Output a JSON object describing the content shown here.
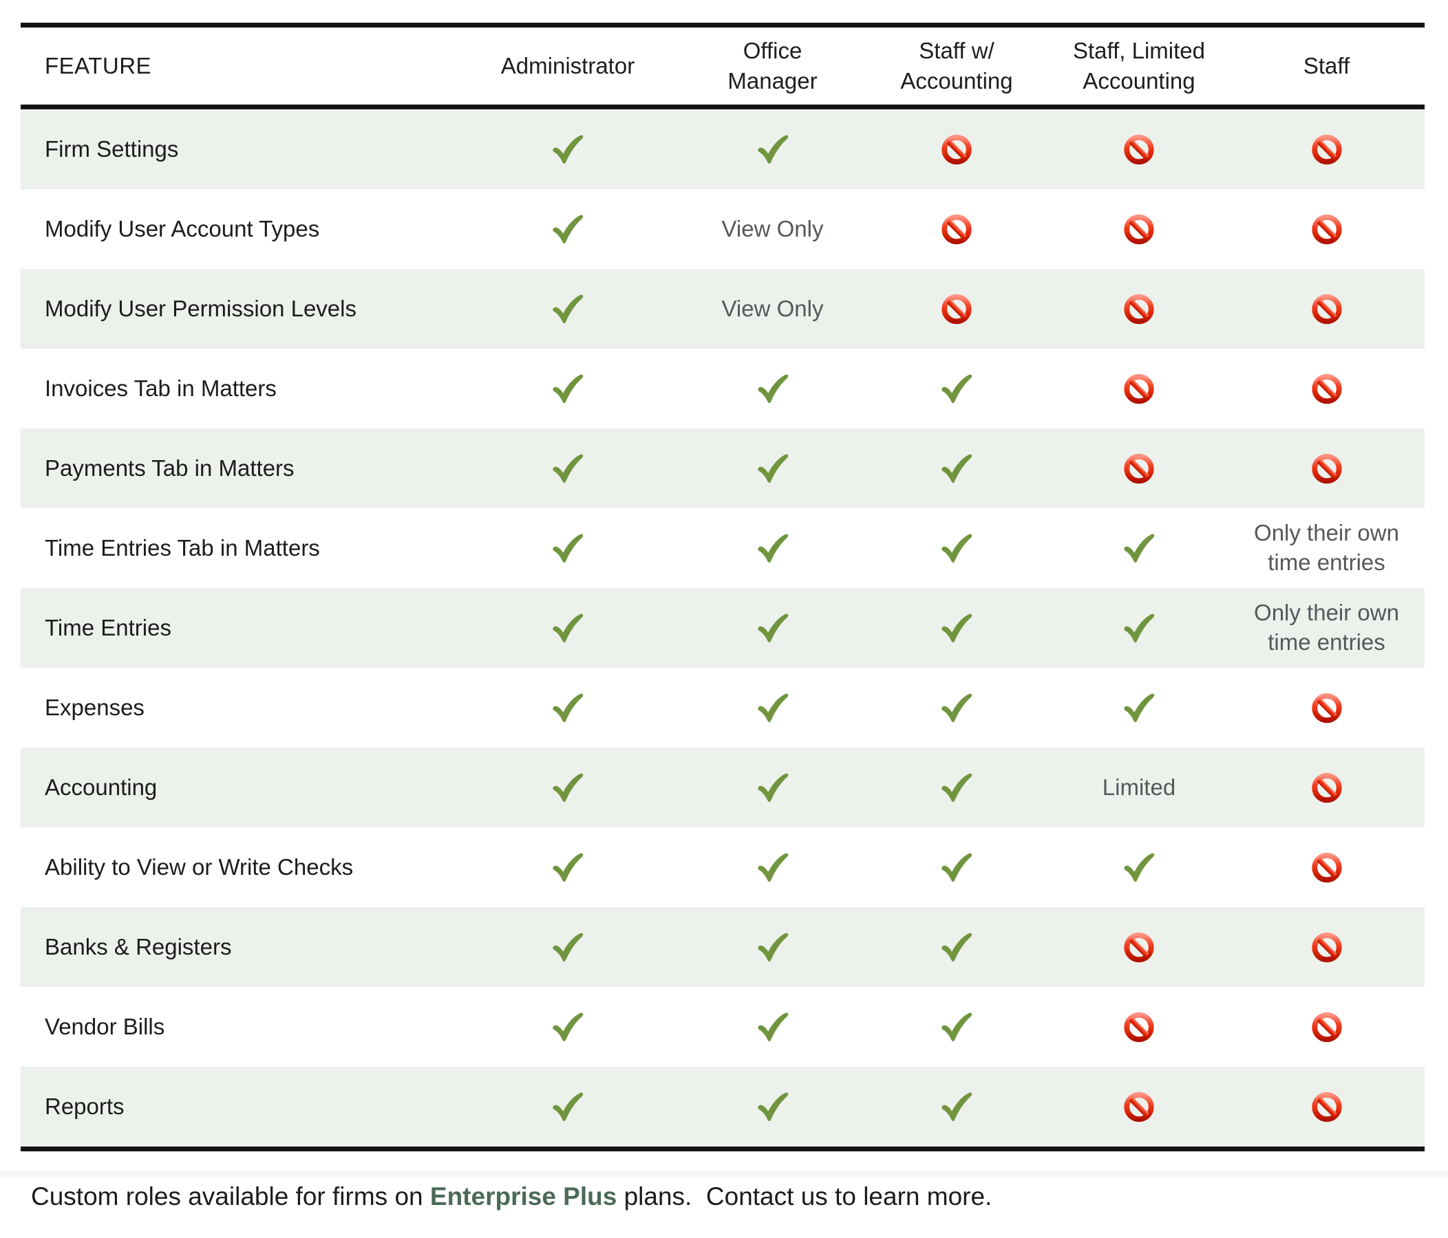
{
  "colors": {
    "row_shade": "#edf1ec",
    "border_black": "#141414",
    "check_green": "#71953e",
    "prohibited_red": "#e02200",
    "muted_text": "#54585a",
    "body_text": "#1c1c1c",
    "link_green": "#4b6a57"
  },
  "icons": {
    "check": "check-icon",
    "prohibited": "prohibited-icon"
  },
  "table": {
    "columns": [
      {
        "label": "FEATURE"
      },
      {
        "label": "Administrator"
      },
      {
        "label": "Office Manager"
      },
      {
        "label": "Staff w/ Accounting"
      },
      {
        "label": "Staff, Limited Accounting"
      },
      {
        "label": "Staff"
      }
    ],
    "rows": [
      {
        "feature": "Firm Settings",
        "cells": [
          {
            "type": "check"
          },
          {
            "type": "check"
          },
          {
            "type": "no"
          },
          {
            "type": "no"
          },
          {
            "type": "no"
          }
        ]
      },
      {
        "feature": "Modify User Account Types",
        "cells": [
          {
            "type": "check"
          },
          {
            "type": "text",
            "label": "View Only"
          },
          {
            "type": "no"
          },
          {
            "type": "no"
          },
          {
            "type": "no"
          }
        ]
      },
      {
        "feature": "Modify User Permission Levels",
        "cells": [
          {
            "type": "check"
          },
          {
            "type": "text",
            "label": "View Only"
          },
          {
            "type": "no"
          },
          {
            "type": "no"
          },
          {
            "type": "no"
          }
        ]
      },
      {
        "feature": "Invoices Tab in Matters",
        "cells": [
          {
            "type": "check"
          },
          {
            "type": "check"
          },
          {
            "type": "check"
          },
          {
            "type": "no"
          },
          {
            "type": "no"
          }
        ]
      },
      {
        "feature": "Payments Tab in Matters",
        "cells": [
          {
            "type": "check"
          },
          {
            "type": "check"
          },
          {
            "type": "check"
          },
          {
            "type": "no"
          },
          {
            "type": "no"
          }
        ]
      },
      {
        "feature": "Time Entries Tab in Matters",
        "cells": [
          {
            "type": "check"
          },
          {
            "type": "check"
          },
          {
            "type": "check"
          },
          {
            "type": "check"
          },
          {
            "type": "text",
            "label": "Only their own time entries"
          }
        ]
      },
      {
        "feature": "Time Entries",
        "cells": [
          {
            "type": "check"
          },
          {
            "type": "check"
          },
          {
            "type": "check"
          },
          {
            "type": "check"
          },
          {
            "type": "text",
            "label": "Only their own time entries"
          }
        ]
      },
      {
        "feature": "Expenses",
        "cells": [
          {
            "type": "check"
          },
          {
            "type": "check"
          },
          {
            "type": "check"
          },
          {
            "type": "check"
          },
          {
            "type": "no"
          }
        ]
      },
      {
        "feature": "Accounting",
        "cells": [
          {
            "type": "check"
          },
          {
            "type": "check"
          },
          {
            "type": "check"
          },
          {
            "type": "text",
            "label": "Limited"
          },
          {
            "type": "no"
          }
        ]
      },
      {
        "feature": "Ability to View or Write Checks",
        "cells": [
          {
            "type": "check"
          },
          {
            "type": "check"
          },
          {
            "type": "check"
          },
          {
            "type": "check"
          },
          {
            "type": "no"
          }
        ]
      },
      {
        "feature": "Banks & Registers",
        "cells": [
          {
            "type": "check"
          },
          {
            "type": "check"
          },
          {
            "type": "check"
          },
          {
            "type": "no"
          },
          {
            "type": "no"
          }
        ]
      },
      {
        "feature": "Vendor Bills",
        "cells": [
          {
            "type": "check"
          },
          {
            "type": "check"
          },
          {
            "type": "check"
          },
          {
            "type": "no"
          },
          {
            "type": "no"
          }
        ]
      },
      {
        "feature": "Reports",
        "cells": [
          {
            "type": "check"
          },
          {
            "type": "check"
          },
          {
            "type": "check"
          },
          {
            "type": "no"
          },
          {
            "type": "no"
          }
        ]
      }
    ]
  },
  "footer": {
    "prefix": "Custom roles available for firms on ",
    "link_text": "Enterprise Plus",
    "suffix": " plans.  Contact us to learn more."
  }
}
